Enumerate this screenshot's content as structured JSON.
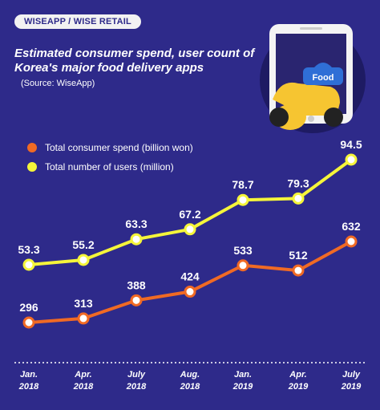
{
  "header": {
    "tag": "WISEAPP / WISE RETAIL",
    "title": "Estimated consumer spend, user count of Korea's major food delivery apps",
    "source": "(Source: WiseApp)"
  },
  "illustration": {
    "label": "Food",
    "icon": "delivery-scooter-phone"
  },
  "colors": {
    "background": "#2e2a8a",
    "users": "#f5f53a",
    "spend": "#f06a24"
  },
  "chart_data": {
    "type": "line",
    "categories": [
      "Jan. 2018",
      "Apr. 2018",
      "July 2018",
      "Aug. 2018",
      "Jan. 2019",
      "Apr. 2019",
      "July 2019"
    ],
    "category_lines": [
      [
        "Jan.",
        "2018"
      ],
      [
        "Apr.",
        "2018"
      ],
      [
        "July",
        "2018"
      ],
      [
        "Aug.",
        "2018"
      ],
      [
        "Jan.",
        "2019"
      ],
      [
        "Apr.",
        "2019"
      ],
      [
        "July",
        "2019"
      ]
    ],
    "series": [
      {
        "name": "Total number of users (million)",
        "color": "#f5f53a",
        "values": [
          53.3,
          55.2,
          63.3,
          67.2,
          78.7,
          79.3,
          94.5
        ]
      },
      {
        "name": "Total consumer spend (billion won)",
        "color": "#f06a24",
        "values": [
          296,
          313,
          388,
          424,
          533,
          512,
          632
        ]
      }
    ],
    "legend": [
      "Total consumer spend (billion won)",
      "Total number of users (million)"
    ],
    "legend_position": "top-left",
    "grid": false
  }
}
